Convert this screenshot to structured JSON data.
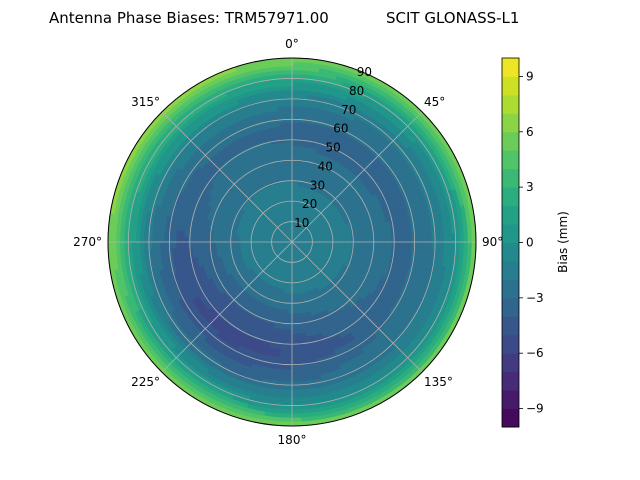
{
  "chart_data": {
    "type": "heatmap",
    "subtype": "polar-contour",
    "title_left": "Antenna Phase Biases: TRM57971.00",
    "title_right": "SCIT GLONASS-L1",
    "azimuth_labels": [
      "0°",
      "45°",
      "90°",
      "135°",
      "180°",
      "225°",
      "270°",
      "315°"
    ],
    "azimuth_degrees": [
      0,
      45,
      90,
      135,
      180,
      225,
      270,
      315
    ],
    "radial_labels": [
      "10",
      "20",
      "30",
      "40",
      "50",
      "60",
      "70",
      "80",
      "90"
    ],
    "radial_values": [
      10,
      20,
      30,
      40,
      50,
      60,
      70,
      80,
      90
    ],
    "radial_range": [
      0,
      90
    ],
    "colorbar": {
      "label": "Bias (mm)",
      "range": [
        -10,
        10
      ],
      "tick_values": [
        -9,
        -6,
        -3,
        0,
        3,
        6,
        9
      ],
      "tick_labels": [
        "−9",
        "−6",
        "−3",
        "0",
        "3",
        "6",
        "9"
      ],
      "colormap": "viridis"
    },
    "grid": true,
    "bias_field_samples_mm": [
      {
        "zenith_angle": 0,
        "bias": -1.0
      },
      {
        "zenith_angle": 20,
        "bias": -1.5
      },
      {
        "zenith_angle": 40,
        "bias": -3.0
      },
      {
        "zenith_angle": 55,
        "bias": -4.0
      },
      {
        "zenith_angle": 70,
        "bias": -2.0
      },
      {
        "zenith_angle": 80,
        "bias": 1.0
      },
      {
        "zenith_angle": 90,
        "bias": 6.0
      }
    ]
  }
}
